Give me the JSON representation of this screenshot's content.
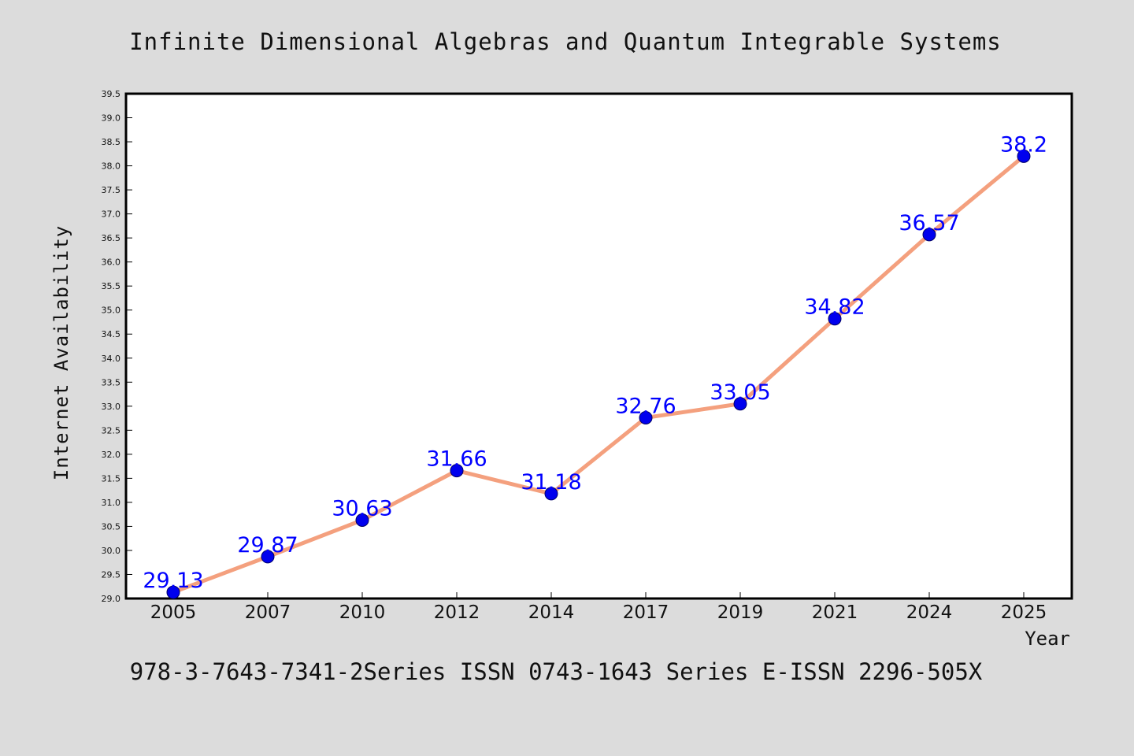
{
  "chart_data": {
    "type": "line",
    "title": "Infinite Dimensional Algebras and Quantum Integrable Systems",
    "xlabel": "Year",
    "ylabel": "Internet Availability",
    "categories": [
      "2005",
      "2007",
      "2010",
      "2012",
      "2014",
      "2017",
      "2019",
      "2021",
      "2024",
      "2025"
    ],
    "values": [
      29.13,
      29.87,
      30.63,
      31.66,
      31.18,
      32.76,
      33.05,
      34.82,
      36.57,
      38.2
    ],
    "data_labels": [
      "29.13",
      "29.87",
      "30.63",
      "31.66",
      "31.18",
      "32.76",
      "33.05",
      "34.82",
      "36.57",
      "38.2"
    ],
    "ylim": [
      29.0,
      39.5
    ],
    "y_ticks": [
      "29.0",
      "29.5",
      "30.0",
      "30.5",
      "31.0",
      "31.5",
      "32.0",
      "32.5",
      "33.0",
      "33.5",
      "34.0",
      "34.5",
      "35.0",
      "35.5",
      "36.0",
      "36.5",
      "37.0",
      "37.5",
      "38.0",
      "38.5",
      "39.0",
      "39.5"
    ],
    "grid": false,
    "legend": "none",
    "footer": "978-3-7643-7341-2Series ISSN 0743-1643 Series E-ISSN 2296-505X",
    "colors": {
      "line": "#f4a07e",
      "marker": "#0000ee",
      "label": "#0000ff",
      "background": "#dcdcdc",
      "plot_background": "#ffffff"
    }
  }
}
